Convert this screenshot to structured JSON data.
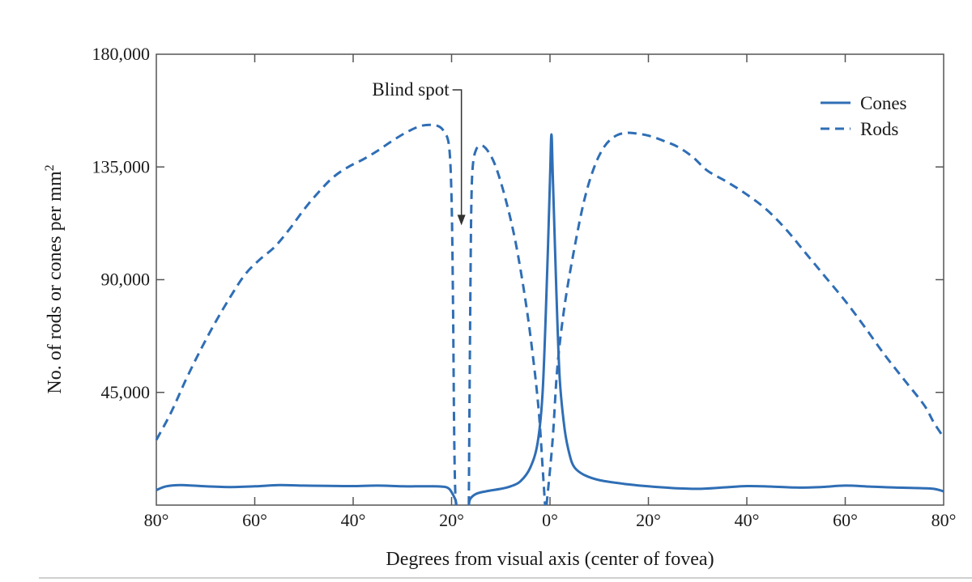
{
  "chart_data": {
    "type": "line",
    "xlabel": "Degrees from visual axis (center of fovea)",
    "ylabel": "No. of rods or cones per mm",
    "ylabel_superscript": "2",
    "xlim": [
      -80,
      80
    ],
    "ylim": [
      0,
      180000
    ],
    "x_ticks": [
      -80,
      -60,
      -40,
      -20,
      0,
      20,
      40,
      60,
      80
    ],
    "x_tick_labels": [
      "80°",
      "60°",
      "40°",
      "20°",
      "0°",
      "20°",
      "40°",
      "60°",
      "80°"
    ],
    "y_ticks": [
      45000,
      90000,
      135000,
      180000
    ],
    "y_tick_labels": [
      "45,000",
      "90,000",
      "135,000",
      "180,000"
    ],
    "grid": false,
    "legend_position": "top-right",
    "colors": {
      "line": "#2f6eb5",
      "axis": "#555555"
    },
    "series": [
      {
        "name": "Cones",
        "style": "solid",
        "segments": [
          [
            [
              -80,
              6000
            ],
            [
              -78,
              7500
            ],
            [
              -75,
              8000
            ],
            [
              -70,
              7500
            ],
            [
              -65,
              7200
            ],
            [
              -60,
              7500
            ],
            [
              -55,
              8000
            ],
            [
              -50,
              7800
            ],
            [
              -45,
              7700
            ],
            [
              -40,
              7600
            ],
            [
              -35,
              7800
            ],
            [
              -30,
              7500
            ],
            [
              -25,
              7500
            ],
            [
              -22,
              7400
            ],
            [
              -20.5,
              6500
            ],
            [
              -19.3,
              2500
            ],
            [
              -19,
              0
            ]
          ],
          [
            [
              -16.5,
              0
            ],
            [
              -16.2,
              2500
            ],
            [
              -15,
              4500
            ],
            [
              -13,
              5500
            ],
            [
              -10,
              6500
            ],
            [
              -8,
              7500
            ],
            [
              -6,
              9500
            ],
            [
              -4,
              15000
            ],
            [
              -2.5,
              25000
            ],
            [
              -1.5,
              45000
            ],
            [
              -0.7,
              85000
            ],
            [
              0,
              130000
            ],
            [
              0.3,
              148000
            ],
            [
              0.6,
              130000
            ],
            [
              1.3,
              85000
            ],
            [
              2,
              50000
            ],
            [
              3,
              30000
            ],
            [
              4,
              20000
            ],
            [
              5,
              15000
            ],
            [
              7,
              12000
            ],
            [
              10,
              10000
            ],
            [
              15,
              8500
            ],
            [
              20,
              7500
            ],
            [
              25,
              6800
            ],
            [
              30,
              6500
            ],
            [
              35,
              7000
            ],
            [
              40,
              7600
            ],
            [
              45,
              7400
            ],
            [
              50,
              7000
            ],
            [
              55,
              7200
            ],
            [
              60,
              7800
            ],
            [
              65,
              7400
            ],
            [
              70,
              7000
            ],
            [
              75,
              6800
            ],
            [
              78,
              6500
            ],
            [
              80,
              5500
            ]
          ]
        ]
      },
      {
        "name": "Rods",
        "style": "dashed",
        "segments": [
          [
            [
              -80,
              26000
            ],
            [
              -77,
              37000
            ],
            [
              -74,
              50000
            ],
            [
              -71,
              62000
            ],
            [
              -68,
              73000
            ],
            [
              -65,
              83000
            ],
            [
              -62,
              92000
            ],
            [
              -59,
              98000
            ],
            [
              -56,
              103000
            ],
            [
              -53,
              110000
            ],
            [
              -50,
              118000
            ],
            [
              -47,
              125000
            ],
            [
              -44,
              131000
            ],
            [
              -41,
              135000
            ],
            [
              -38,
              138000
            ],
            [
              -35,
              141500
            ],
            [
              -32,
              145500
            ],
            [
              -29,
              149000
            ],
            [
              -26,
              151500
            ],
            [
              -23,
              151500
            ],
            [
              -21.5,
              149000
            ],
            [
              -20.5,
              143000
            ],
            [
              -20,
              122000
            ],
            [
              -19.7,
              80000
            ],
            [
              -19.5,
              35000
            ],
            [
              -19.3,
              8000
            ],
            [
              -19.1,
              0
            ]
          ],
          [
            [
              -16.5,
              0
            ],
            [
              -16.4,
              30000
            ],
            [
              -16.2,
              80000
            ],
            [
              -16,
              118000
            ],
            [
              -15.7,
              135000
            ],
            [
              -15,
              142000
            ],
            [
              -13.8,
              143500
            ],
            [
              -12.5,
              141000
            ],
            [
              -11,
              135000
            ],
            [
              -9,
              122000
            ],
            [
              -7,
              105000
            ],
            [
              -5,
              82000
            ],
            [
              -3.5,
              60000
            ],
            [
              -2.3,
              38000
            ],
            [
              -1.5,
              15000
            ],
            [
              -1,
              0
            ]
          ],
          [
            [
              -0.7,
              0
            ],
            [
              0.5,
              25000
            ],
            [
              1.5,
              55000
            ],
            [
              3,
              80000
            ],
            [
              5,
              103000
            ],
            [
              7,
              122000
            ],
            [
              9,
              135000
            ],
            [
              11,
              143000
            ],
            [
              13,
              147000
            ],
            [
              15,
              148500
            ],
            [
              17,
              148500
            ],
            [
              20,
              147500
            ],
            [
              23,
              145500
            ],
            [
              26,
              143000
            ],
            [
              29,
              139000
            ],
            [
              32,
              133500
            ],
            [
              36,
              129000
            ],
            [
              40,
              124000
            ],
            [
              44,
              118000
            ],
            [
              48,
              110000
            ],
            [
              52,
              100500
            ],
            [
              56,
              91000
            ],
            [
              60,
              81500
            ],
            [
              64,
              71000
            ],
            [
              68,
              60000
            ],
            [
              72,
              50000
            ],
            [
              76,
              40000
            ],
            [
              78,
              33000
            ],
            [
              80,
              27000
            ]
          ]
        ]
      }
    ],
    "annotations": [
      {
        "text": "Blind spot",
        "x": -18,
        "y": 112000
      }
    ]
  }
}
